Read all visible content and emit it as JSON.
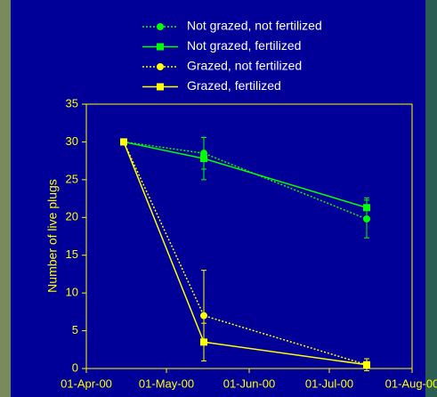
{
  "chart_data": {
    "type": "line",
    "x": [
      "2000-04-15",
      "2000-05-15",
      "2000-07-15"
    ],
    "xlim": [
      "2000-04-01",
      "2000-08-01"
    ],
    "xticks": [
      {
        "value": "2000-04-01",
        "label": "01-Apr-00"
      },
      {
        "value": "2000-05-01",
        "label": "01-May-00"
      },
      {
        "value": "2000-06-01",
        "label": "01-Jun-00"
      },
      {
        "value": "2000-07-01",
        "label": "01-Jul-00"
      },
      {
        "value": "2000-08-01",
        "label": "01-Aug-00"
      }
    ],
    "ylabel": "Number of live plugs",
    "ylim": [
      0,
      35
    ],
    "yticks": [
      0,
      5,
      10,
      15,
      20,
      25,
      30,
      35
    ],
    "series": [
      {
        "name": "Not grazed, not fertilized",
        "color": "#00ff00",
        "dash": "dotted",
        "marker": "circle",
        "values": [
          30,
          28.5,
          19.8
        ],
        "errors": [
          null,
          2.1,
          2.5
        ]
      },
      {
        "name": "Not grazed, fertilized",
        "color": "#00ff00",
        "dash": "solid",
        "marker": "square",
        "values": [
          30,
          27.8,
          21.3
        ],
        "errors": [
          null,
          2.8,
          1.3
        ]
      },
      {
        "name": "Grazed, not fertilized",
        "color": "#ffff00",
        "dash": "dotted",
        "marker": "circle",
        "values": [
          30,
          7,
          0.5
        ],
        "errors": [
          null,
          6,
          0.8
        ]
      },
      {
        "name": "Grazed, fertilized",
        "color": "#ffff00",
        "dash": "solid",
        "marker": "square",
        "values": [
          30,
          3.5,
          0.5
        ],
        "errors": [
          null,
          2.5,
          0.3
        ]
      }
    ]
  }
}
